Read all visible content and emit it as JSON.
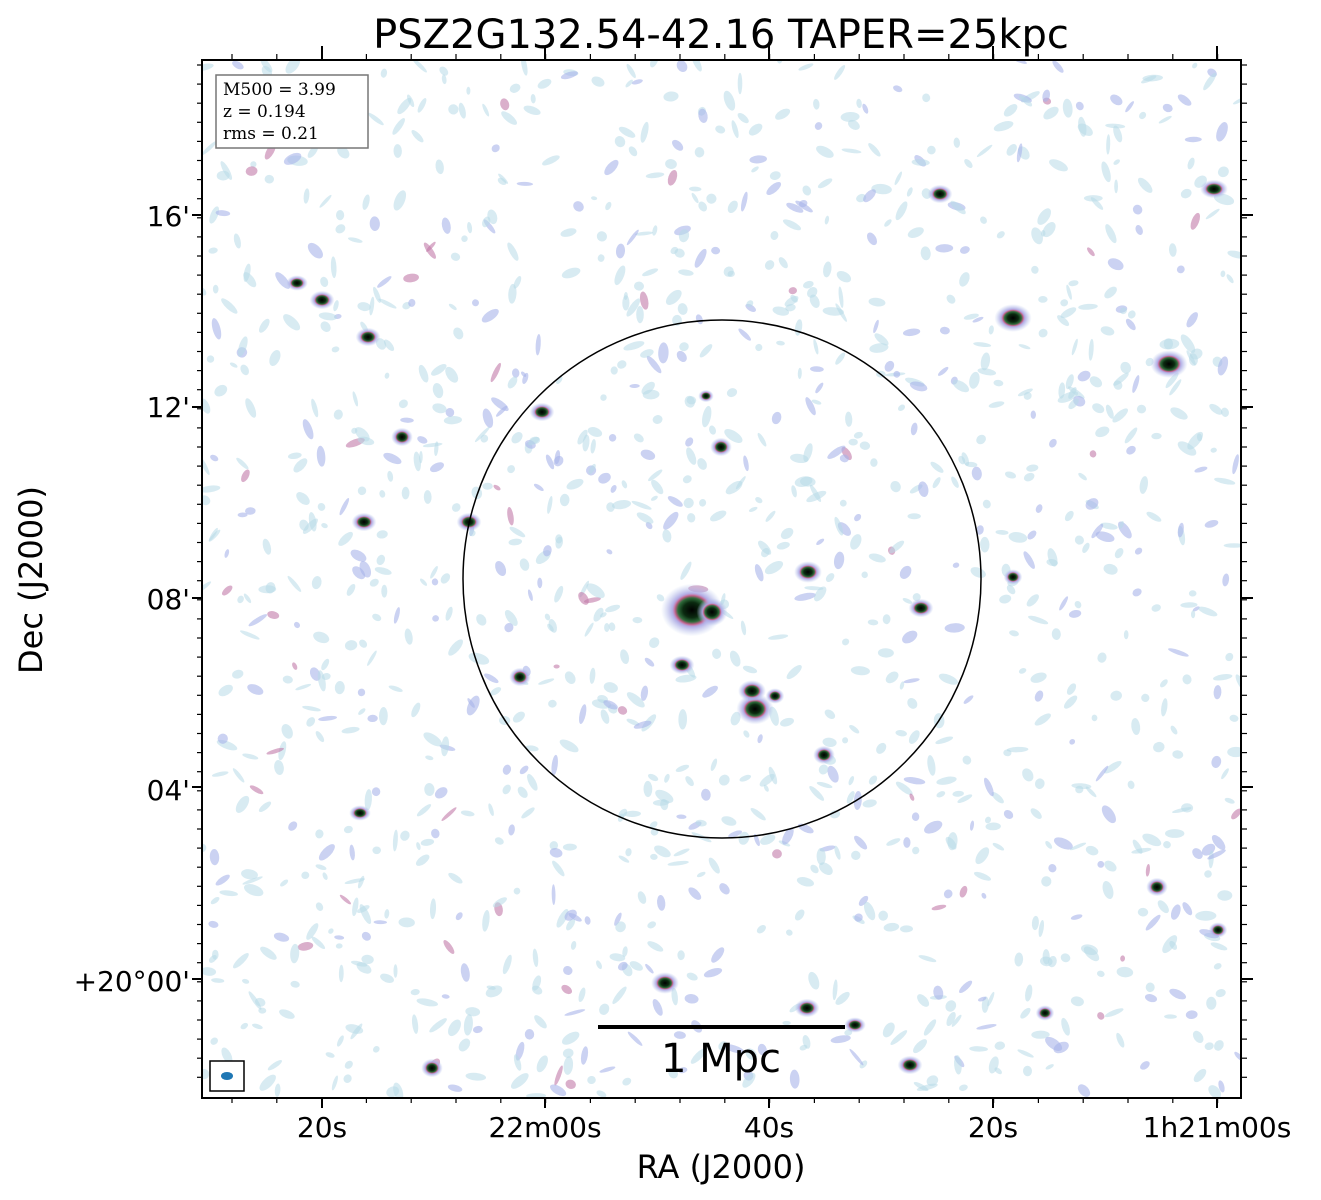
{
  "title": "PSZ2G132.54-42.16 TAPER=25kpc",
  "xlabel": "RA (J2000)",
  "ylabel": "Dec (J2000)",
  "xticks": [
    "20s",
    "22m00s",
    "40s",
    "20s",
    "1h21m00s"
  ],
  "yticks": [
    "16'",
    "12'",
    "08'",
    "04'",
    "+20°00'"
  ],
  "info_box": [
    "M500 = 3.99",
    "z = 0.194",
    "rms = 0.21"
  ],
  "scalebar_label": "1 Mpc",
  "colors": {
    "beam": "#1f77b4",
    "noise_light": "#b8dbe8",
    "noise_mid": "#a9b4ea",
    "source_halo": "#c2608a",
    "source_core": "#000000"
  }
}
